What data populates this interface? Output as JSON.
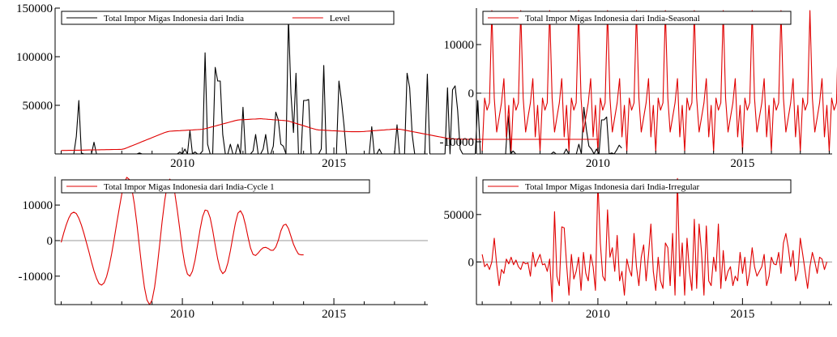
{
  "colors": {
    "primary": "#000000",
    "secondary": "#e00000",
    "zero_line": "#999999",
    "axes": "#000000"
  },
  "chart_data": [
    {
      "type": "line",
      "title": "",
      "xlabel": "",
      "ylabel": "",
      "x_start": 2006.0,
      "x_step": 0.0833333,
      "xlim": [
        2005.8,
        2018.1
      ],
      "ylim": [
        0,
        150000
      ],
      "xticks": [
        "2010",
        "2015"
      ],
      "yticks": [
        "50000",
        "100000",
        "150000"
      ],
      "legend": "top",
      "grid": false,
      "series": [
        {
          "name": "Total Impor Migas Indonesia dari India",
          "color": "#000000",
          "values": [
            0,
            0,
            0,
            0,
            0,
            0,
            18000,
            55000,
            1000,
            0,
            0,
            0,
            0,
            12000,
            0,
            0,
            0,
            0,
            0,
            0,
            0,
            0,
            0,
            0,
            0,
            0,
            0,
            0,
            0,
            0,
            0,
            1000,
            0,
            0,
            0,
            0,
            0,
            0,
            0,
            0,
            0,
            0,
            0,
            0,
            0,
            0,
            0,
            2000,
            0,
            5000,
            0,
            24000,
            0,
            2000,
            0,
            0,
            3000,
            104000,
            10000,
            0,
            0,
            89000,
            75000,
            75000,
            20000,
            0,
            0,
            10000,
            0,
            0,
            10000,
            0,
            48000,
            0,
            0,
            0,
            3000,
            20000,
            0,
            0,
            5000,
            20000,
            0,
            0,
            8000,
            43000,
            35000,
            10000,
            8000,
            0,
            140000,
            62000,
            22000,
            83000,
            0,
            0,
            55000,
            55000,
            56000,
            0,
            0,
            0,
            0,
            5000,
            91000,
            0,
            0,
            0,
            0,
            0,
            75000,
            55000,
            30000,
            0,
            0,
            0,
            0,
            0,
            0,
            0,
            0,
            0,
            0,
            28000,
            0,
            0,
            5000,
            0,
            0,
            0,
            0,
            0,
            0,
            30000,
            0,
            0,
            0,
            83000,
            68000,
            20000,
            0,
            0,
            0,
            0,
            0,
            82000,
            0,
            0,
            0,
            0,
            0,
            0,
            0,
            68000,
            0,
            66000,
            70000,
            45000,
            5000,
            0,
            0,
            0,
            0,
            0,
            0,
            55000,
            0,
            0,
            0,
            0,
            0,
            0,
            0,
            0,
            0,
            0,
            0,
            40000,
            0,
            3000,
            0,
            0,
            0,
            0,
            0,
            0,
            0,
            0,
            0,
            0,
            0,
            0,
            0,
            0,
            0,
            2000,
            0,
            0,
            0,
            0,
            5000,
            0,
            0,
            0,
            0,
            10000,
            0,
            48000,
            25000,
            8000,
            5000,
            0,
            5000,
            0,
            35000,
            35000,
            38000,
            0,
            1000,
            0,
            4000,
            9000,
            6000
          ]
        },
        {
          "name": "Level",
          "color": "#e00000",
          "values": [
            3500,
            3550,
            3600,
            3650,
            3700,
            3750,
            3800,
            3850,
            3900,
            3950,
            4000,
            4050,
            4100,
            4150,
            4200,
            4250,
            4300,
            4350,
            4400,
            4450,
            4500,
            4550,
            4600,
            4650,
            4750,
            5250,
            6250,
            7300,
            8350,
            9400,
            10450,
            11500,
            12550,
            13600,
            14650,
            15700,
            16750,
            17800,
            18850,
            19900,
            20950,
            22000,
            22750,
            23300,
            23500,
            23650,
            23800,
            23950,
            24100,
            24250,
            24400,
            24550,
            24700,
            24850,
            25000,
            25150,
            25400,
            25900,
            26600,
            27300,
            28000,
            28700,
            29400,
            30100,
            30800,
            31500,
            32200,
            32900,
            33600,
            34300,
            34850,
            35200,
            35200,
            35350,
            35500,
            35650,
            35800,
            35950,
            36100,
            36250,
            36000,
            35800,
            35600,
            35400,
            35200,
            35000,
            34800,
            34600,
            34400,
            34200,
            33800,
            33000,
            32200,
            31400,
            30600,
            29800,
            29000,
            28200,
            27400,
            26600,
            25800,
            25050,
            24700,
            24550,
            24400,
            24250,
            24100,
            23950,
            23800,
            23650,
            23500,
            23350,
            23200,
            23050,
            22950,
            22850,
            22800,
            22800,
            22850,
            22950,
            23100,
            23300,
            23500,
            23700,
            23900,
            24100,
            24300,
            24500,
            24700,
            24900,
            25100,
            25300,
            25500,
            25600,
            25400,
            25000,
            24500,
            24000,
            23500,
            23000,
            22500,
            22000,
            21500,
            21000,
            20500,
            20000,
            19500,
            19000,
            18500,
            18000,
            17500,
            17000,
            16500,
            16000,
            15650,
            15400,
            15300,
            15250,
            15200,
            15150,
            15100,
            15050,
            15000,
            15000,
            15000,
            15000,
            15000,
            15000,
            15000,
            15000,
            15000,
            15000,
            15000,
            15000,
            15000,
            15000,
            15000,
            15000,
            15000,
            15000,
            15000,
            15000,
            15000,
            15000,
            15000,
            15000,
            15000,
            15000,
            15000,
            15000,
            15000,
            15000,
            15000,
            15000,
            15000,
            15000,
            15000,
            15000,
            15000,
            15000,
            15000,
            15000,
            15000,
            15000,
            15000,
            15000,
            15000,
            15000,
            15000,
            15000,
            15000,
            15000,
            15000,
            15000
          ]
        }
      ]
    },
    {
      "type": "line",
      "title": "",
      "xlabel": "",
      "ylabel": "",
      "x_start": 2006.0,
      "x_step": 0.0833333,
      "xlim": [
        2005.8,
        2018.1
      ],
      "ylim": [
        -12500,
        17500
      ],
      "zero_line": true,
      "xticks": [
        "2010",
        "2015"
      ],
      "yticks": [
        "-10000",
        "0",
        "10000"
      ],
      "legend": "top",
      "grid": false,
      "series": [
        {
          "name": "Total Impor Migas Indonesia dari India-Seasonal",
          "color": "#e00000",
          "values": [
            -12000,
            -1000,
            -3500,
            -2000,
            17000,
            -1000,
            -8000,
            -5000,
            -2000,
            3000,
            -9000,
            -2500,
            -12000,
            -1000,
            -3500,
            -2000,
            17000,
            -1000,
            -8000,
            -5000,
            -2000,
            3000,
            -9000,
            -2500,
            -12000,
            -1000,
            -3500,
            -2000,
            17000,
            -1000,
            -8000,
            -5000,
            -2000,
            3000,
            -9000,
            -2500,
            -12000,
            -1000,
            -3500,
            -2000,
            17000,
            -1000,
            -8000,
            -5000,
            -2000,
            3000,
            -9000,
            -2500,
            -12000,
            -1000,
            -3500,
            -2000,
            17000,
            -1000,
            -8000,
            -5000,
            -2000,
            3000,
            -9000,
            -2500,
            -12000,
            -1000,
            -3500,
            -2000,
            17000,
            -1000,
            -8000,
            -5000,
            -2000,
            3000,
            -9000,
            -2500,
            -12000,
            -1000,
            -3500,
            -2000,
            17000,
            -1000,
            -8000,
            -5000,
            -2000,
            3000,
            -9000,
            -2500,
            -12000,
            -1000,
            -3500,
            -2000,
            17000,
            -1000,
            -8000,
            -5000,
            -2000,
            3000,
            -9000,
            -2500,
            -12000,
            -1000,
            -3500,
            -2000,
            17000,
            -1000,
            -8000,
            -5000,
            -2000,
            3000,
            -9000,
            -2500,
            -12000,
            -1000,
            -3500,
            -2000,
            17000,
            -1000,
            -8000,
            -5000,
            -2000,
            3000,
            -9000,
            -2500,
            -12000,
            -1000,
            -3500,
            -2000,
            17000,
            -1000,
            -8000,
            -5000,
            -2000,
            3000,
            -9000,
            -2500,
            -12000,
            -1000,
            -3500,
            -2000,
            17000,
            -1000,
            -8000,
            -5000,
            -2000,
            3000,
            -9000,
            -2500,
            -12000,
            -1000,
            -3500,
            -2000,
            17000,
            -1000,
            -8000,
            -5000,
            -2000,
            3000,
            -9000,
            -2500,
            -12000,
            -1000,
            -3500,
            -2000,
            17000,
            -1000,
            -8000,
            -5000,
            -2000,
            3000,
            -9000,
            -2500
          ]
        }
      ]
    },
    {
      "type": "line",
      "title": "",
      "xlabel": "",
      "ylabel": "",
      "x_start": 2006.0,
      "x_step": 0.0833333,
      "xlim": [
        2005.8,
        2018.1
      ],
      "ylim": [
        -18000,
        18000
      ],
      "zero_line": true,
      "xticks": [
        "2010",
        "2015"
      ],
      "yticks": [
        "-10000",
        "0",
        "10000"
      ],
      "legend": "top",
      "grid": false,
      "series": [
        {
          "name": "Total Impor Migas Indonesia dari India-Cycle 1",
          "color": "#e00000",
          "values": [
            -500,
            2100,
            4400,
            6300,
            7600,
            8000,
            7600,
            6300,
            4400,
            2100,
            -500,
            -3200,
            -6000,
            -8500,
            -10600,
            -12100,
            -12500,
            -11900,
            -10100,
            -7300,
            -3700,
            400,
            4800,
            9100,
            13100,
            16300,
            17800,
            17200,
            14600,
            10200,
            4600,
            -1700,
            -7900,
            -13200,
            -16700,
            -18000,
            -16700,
            -13100,
            -7600,
            -1200,
            5400,
            11300,
            15600,
            17300,
            16500,
            13400,
            8600,
            3000,
            -2500,
            -6800,
            -9400,
            -10000,
            -8600,
            -5500,
            -1300,
            3100,
            6700,
            8600,
            8400,
            6400,
            2900,
            -1300,
            -5200,
            -8100,
            -9300,
            -8600,
            -6300,
            -2900,
            1100,
            4900,
            7700,
            8400,
            7100,
            4400,
            1000,
            -2100,
            -3900,
            -4200,
            -3500,
            -2600,
            -2000,
            -1900,
            -2200,
            -2700,
            -2700,
            -1800,
            100,
            2700,
            4300,
            4600,
            3400,
            1200,
            -1000,
            -2600,
            -3800,
            -4000,
            -4000
          ]
        }
      ]
    },
    {
      "type": "line",
      "title": "",
      "xlabel": "",
      "ylabel": "",
      "x_start": 2006.0,
      "x_step": 0.0833333,
      "xlim": [
        2005.8,
        2018.1
      ],
      "ylim": [
        -45000,
        90000
      ],
      "zero_line": true,
      "xticks": [
        "2010",
        "2015"
      ],
      "yticks": [
        "0",
        "50000"
      ],
      "legend": "top",
      "grid": false,
      "series": [
        {
          "name": "Total Impor Migas Indonesia dari India-Irregular",
          "color": "#e00000",
          "values": [
            8000,
            -5000,
            -2000,
            -8000,
            0,
            25000,
            -3000,
            -25000,
            -8000,
            -12000,
            3000,
            -2000,
            5000,
            -3000,
            2000,
            -5000,
            -8000,
            0,
            -2000,
            -1000,
            -15000,
            10000,
            -5000,
            2000,
            8000,
            -3000,
            -2000,
            -10000,
            3000,
            -42000,
            53000,
            -15000,
            -25000,
            37000,
            36000,
            -2000,
            -35000,
            8000,
            -18000,
            -10000,
            5000,
            -30000,
            10000,
            -12000,
            -20000,
            8000,
            -5000,
            -30000,
            85000,
            20000,
            -15000,
            -20000,
            55000,
            5000,
            15000,
            -10000,
            28000,
            -20000,
            -10000,
            -35000,
            3000,
            -8000,
            -15000,
            30000,
            -5000,
            -25000,
            5000,
            18000,
            -20000,
            8000,
            40000,
            -10000,
            -30000,
            5000,
            -20000,
            -28000,
            20000,
            15000,
            -25000,
            30000,
            -35000,
            88000,
            -15000,
            20000,
            -35000,
            25000,
            -10000,
            -30000,
            45000,
            -28000,
            40000,
            10000,
            -35000,
            38000,
            -20000,
            -25000,
            5000,
            -10000,
            40000,
            -28000,
            12000,
            -20000,
            -10000,
            -5000,
            -25000,
            -15000,
            -20000,
            10000,
            -12000,
            5000,
            -25000,
            -10000,
            15000,
            -5000,
            -15000,
            -10000,
            -5000,
            8000,
            -25000,
            -15000,
            5000,
            -2000,
            -3000,
            10000,
            -12000,
            20000,
            30000,
            15000,
            -5000,
            12000,
            -20000,
            -10000,
            25000,
            8000,
            -10000,
            -28000,
            -5000,
            10000,
            0,
            -12000,
            5000,
            3000,
            -8000,
            0
          ]
        }
      ]
    }
  ]
}
